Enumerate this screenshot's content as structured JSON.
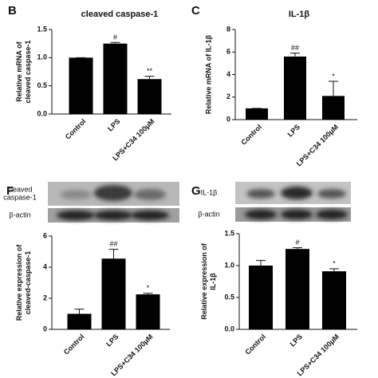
{
  "chart_data": [
    {
      "type": "bar",
      "panel": "B",
      "title": "cleaved caspase-1",
      "ylabel": [
        "Relative mRNA of",
        "cleaved caspase-1"
      ],
      "categories": [
        "Control",
        "LPS",
        "LPS+C34 100μM"
      ],
      "values": [
        1.0,
        1.25,
        0.62
      ],
      "errors": [
        0.0,
        0.02,
        0.05
      ],
      "annotations": [
        null,
        "#",
        "**"
      ],
      "color": "#000000",
      "ylim": [
        0,
        1.5
      ],
      "yticks": [
        {
          "value": 0,
          "label": "0.0"
        },
        {
          "value": 0.5,
          "label": "0.5"
        },
        {
          "value": 1,
          "label": "1.0"
        },
        {
          "value": 1.5,
          "label": "1.5"
        }
      ]
    },
    {
      "type": "bar",
      "panel": "C",
      "title": "IL-1β",
      "ylabel": [
        "Relative mRNA of IL-1β"
      ],
      "categories": [
        "Control",
        "LPS",
        "LPS+C34 100μM"
      ],
      "values": [
        1.0,
        5.6,
        2.1
      ],
      "errors": [
        0.0,
        0.3,
        1.3
      ],
      "annotations": [
        null,
        "##",
        "*"
      ],
      "color": "#000000",
      "ylim": [
        0,
        8
      ],
      "yticks": [
        0,
        2,
        4,
        6,
        8
      ]
    },
    {
      "type": "bar",
      "panel": "F",
      "blot_labels": [
        [
          "cleaved",
          "caspase-1"
        ],
        [
          "β-actin"
        ]
      ],
      "ylabel": [
        "Relative expression of",
        "cleaved-caspase-1"
      ],
      "categories": [
        "Control",
        "LPS",
        "LPS+C34 100μM"
      ],
      "values": [
        1.0,
        4.55,
        2.25
      ],
      "errors": [
        0.3,
        0.6,
        0.07
      ],
      "annotations": [
        null,
        "##",
        "*"
      ],
      "color": "#000000",
      "ylim": [
        0,
        6
      ],
      "yticks": [
        0,
        2,
        4,
        6
      ]
    },
    {
      "type": "bar",
      "panel": "G",
      "blot_labels": [
        [
          "IL-1β"
        ],
        [
          "β-actin"
        ]
      ],
      "ylabel": [
        "Relative expression of",
        "IL-1β"
      ],
      "categories": [
        "Control",
        "LPS",
        "LPS+C34 100μM"
      ],
      "values": [
        1.0,
        1.26,
        0.91
      ],
      "errors": [
        0.08,
        0.02,
        0.04
      ],
      "annotations": [
        null,
        "#",
        "*"
      ],
      "color": "#000000",
      "ylim": [
        0,
        1.5
      ],
      "yticks": [
        {
          "value": 0,
          "label": "0.0"
        },
        {
          "value": 0.5,
          "label": "0.5"
        },
        {
          "value": 1,
          "label": "1.0"
        },
        {
          "value": 1.5,
          "label": "1.5"
        }
      ]
    }
  ]
}
